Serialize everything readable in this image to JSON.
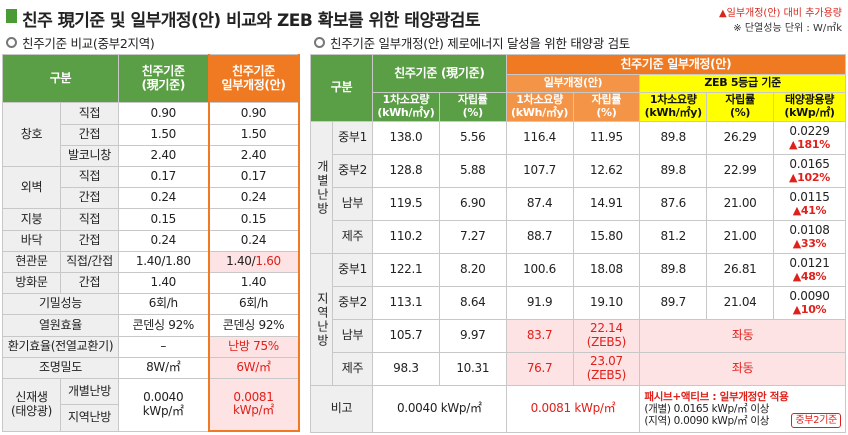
{
  "title": "친주 現기준 및 일부개정(안) 비교와 ZEB 확보를 위한 태양광검토",
  "legend_note": "▲일부개정(안) 대비 추가용량",
  "unit_note": "※ 단열성능 단위 : W/㎡k",
  "left": {
    "caption": "친주기준 비교(중부2지역)",
    "headers": [
      "구분",
      "친주기준\n(現기준)",
      "친주기준\n일부개정(안)"
    ],
    "rows": [
      {
        "group": "창호",
        "items": [
          {
            "sub": "직접",
            "cur": "0.90",
            "new": "0.90"
          },
          {
            "sub": "간접",
            "cur": "1.50",
            "new": "1.50"
          },
          {
            "sub": "발코니창",
            "cur": "2.40",
            "new": "2.40"
          }
        ]
      },
      {
        "group": "외벽",
        "items": [
          {
            "sub": "직접",
            "cur": "0.17",
            "new": "0.17"
          },
          {
            "sub": "간접",
            "cur": "0.24",
            "new": "0.24"
          }
        ]
      },
      {
        "group": "지붕",
        "items": [
          {
            "sub": "직접",
            "cur": "0.15",
            "new": "0.15"
          }
        ]
      },
      {
        "group": "바닥",
        "items": [
          {
            "sub": "간접",
            "cur": "0.24",
            "new": "0.24"
          }
        ]
      },
      {
        "group": "현관문",
        "items": [
          {
            "sub": "직접/간접",
            "cur": "1.40/1.80",
            "new": "1.40/",
            "new_red": "1.60"
          }
        ]
      },
      {
        "group": "방화문",
        "items": [
          {
            "sub": "간접",
            "cur": "1.40",
            "new": "1.40"
          }
        ]
      },
      {
        "group": "기밀성능",
        "cur": "6회/h",
        "new": "6회/h"
      },
      {
        "group": "열원효율",
        "cur": "콘덴싱 92%",
        "new": "콘덴싱 92%"
      },
      {
        "group": "환기효율(전열교환기)",
        "cur": "–",
        "new": "난방 75%"
      },
      {
        "group": "조명밀도",
        "cur": "8W/㎡",
        "new": "6W/㎡"
      },
      {
        "group": "신재생\n(태양광)",
        "items": [
          {
            "sub": "개별난방"
          },
          {
            "sub": "지역난방"
          }
        ],
        "cur": "0.0040\nkWp/㎡",
        "new": "0.0081\nkWp/㎡"
      }
    ]
  },
  "right": {
    "caption": "친주기준 일부개정(안) 제로에너지 달성을 위한 태양광 검토",
    "header": {
      "group": "구분",
      "cur": "친주기준 (現기준)",
      "rev": "친주기준 일부개정(안)",
      "rev_sub": "일부개정(안)",
      "zeb": "ZEB 5등급 기준",
      "cols": [
        "1차소요량\n(kWh/㎡y)",
        "자립률\n(%)",
        "1차소요량\n(kWh/㎡y)",
        "자립률\n(%)",
        "1차소요량\n(kWh/㎡y)",
        "자립률\n(%)",
        "태양광용량\n(kWp/㎡)"
      ]
    },
    "groups": [
      {
        "name": "개별난방",
        "rows": [
          {
            "region": "중부1",
            "cur_energy": "138.0",
            "cur_rate": "5.56",
            "rev_energy": "116.4",
            "rev_rate": "11.95",
            "zeb_energy": "89.8",
            "zeb_rate": "26.29",
            "pv": "0.0229",
            "pv_add": "▲181%"
          },
          {
            "region": "중부2",
            "cur_energy": "128.8",
            "cur_rate": "5.88",
            "rev_energy": "107.7",
            "rev_rate": "12.62",
            "zeb_energy": "89.8",
            "zeb_rate": "22.99",
            "pv": "0.0165",
            "pv_add": "▲102%"
          },
          {
            "region": "남부",
            "cur_energy": "119.5",
            "cur_rate": "6.90",
            "rev_energy": "87.4",
            "rev_rate": "14.91",
            "zeb_energy": "87.6",
            "zeb_rate": "21.00",
            "pv": "0.0115",
            "pv_add": "▲41%"
          },
          {
            "region": "제주",
            "cur_energy": "110.2",
            "cur_rate": "7.27",
            "rev_energy": "88.7",
            "rev_rate": "15.80",
            "zeb_energy": "81.2",
            "zeb_rate": "21.00",
            "pv": "0.0108",
            "pv_add": "▲33%"
          }
        ]
      },
      {
        "name": "지역난방",
        "rows": [
          {
            "region": "중부1",
            "cur_energy": "122.1",
            "cur_rate": "8.20",
            "rev_energy": "100.6",
            "rev_rate": "18.08",
            "zeb_energy": "89.8",
            "zeb_rate": "26.81",
            "pv": "0.0121",
            "pv_add": "▲48%"
          },
          {
            "region": "중부2",
            "cur_energy": "113.1",
            "cur_rate": "8.64",
            "rev_energy": "91.9",
            "rev_rate": "19.10",
            "zeb_energy": "89.7",
            "zeb_rate": "21.04",
            "pv": "0.0090",
            "pv_add": "▲10%"
          },
          {
            "region": "남부",
            "cur_energy": "105.7",
            "cur_rate": "9.97",
            "rev_energy": "83.7",
            "rev_rate": "22.14\n(ZEB5)",
            "same": "좌동"
          },
          {
            "region": "제주",
            "cur_energy": "98.3",
            "cur_rate": "10.31",
            "rev_energy": "76.7",
            "rev_rate": "23.07\n(ZEB5)",
            "same": "좌동"
          }
        ]
      }
    ],
    "footer": {
      "label": "비고",
      "cur": "0.0040 kWp/㎡",
      "rev": "0.0081 kWp/㎡",
      "note": [
        "패시브+액티브 : 일부개정안 적용",
        "(개별) 0.0165 kWp/㎡ 이상",
        "(지역) 0.0090 kWp/㎡ 이상"
      ],
      "badge": "중부2기준"
    }
  }
}
